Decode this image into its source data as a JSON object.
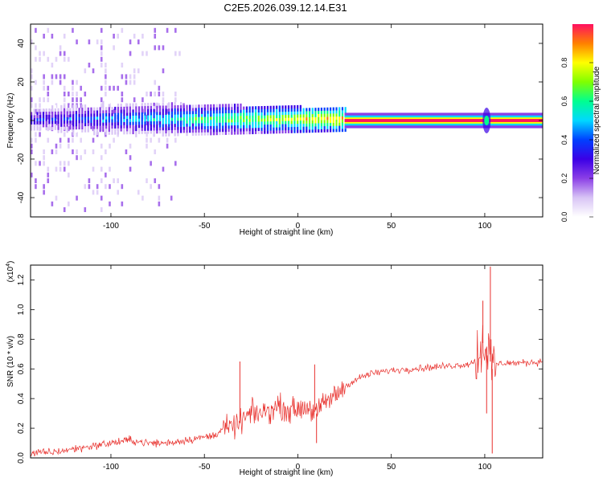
{
  "title": "C2E5.2026.039.12.14.E31",
  "colors": {
    "snr_line": "#e8302c",
    "axes": "#000000",
    "background": "#ffffff",
    "colormap": [
      "#ffffff",
      "#d8c4f5",
      "#8b3fe6",
      "#3b00e6",
      "#0040ff",
      "#00d8ff",
      "#00ff90",
      "#80ff00",
      "#ffff00",
      "#ff8000",
      "#ff1060"
    ]
  },
  "chart_data": [
    {
      "type": "heatmap",
      "title": "C2E5.2026.039.12.14.E31",
      "xlabel": "Height of straight line (km)",
      "ylabel": "Frequency (Hz)",
      "xlim": [
        -143,
        131
      ],
      "ylim": [
        -50,
        50
      ],
      "xticks": [
        -100,
        -50,
        0,
        50,
        100
      ],
      "xtick_labels": [
        "-100",
        "-50",
        "0",
        "50",
        "100"
      ],
      "yticks": [
        -40,
        -20,
        0,
        20,
        40
      ],
      "ytick_labels": [
        "-40",
        "-20",
        "0",
        "20",
        "40"
      ],
      "colorbar": {
        "label": "Normalized spectral amplitude",
        "range": [
          0,
          1
        ],
        "ticks": [
          0.0,
          0.2,
          0.4,
          0.6,
          0.8
        ],
        "tick_labels": [
          "0.0",
          "0.2",
          "0.4",
          "0.6",
          "0.8"
        ]
      },
      "description_values": {
        "central_frequency_hz": 0,
        "band_halfwidth_noise_region_hz": 6,
        "narrow_band_start_km": 25,
        "burst_location_km": 101
      }
    },
    {
      "type": "line",
      "xlabel": "Height of straight line (km)",
      "ylabel": "SNR (10 * v/v)",
      "y_exponent_label": "(x10",
      "y_exponent_power": "4",
      "y_exponent_close": ")",
      "xlim": [
        -143,
        131
      ],
      "ylim": [
        0,
        1.3
      ],
      "xticks": [
        -100,
        -50,
        0,
        50,
        100
      ],
      "xtick_labels": [
        "-100",
        "-50",
        "0",
        "50",
        "100"
      ],
      "yticks": [
        0.0,
        0.2,
        0.4,
        0.6,
        0.8,
        1.0,
        1.2
      ],
      "ytick_labels": [
        "0.0",
        "0.2",
        "0.4",
        "0.6",
        "0.8",
        "1.0",
        "1.2"
      ],
      "series": [
        {
          "name": "SNR",
          "x": [
            -143,
            -130,
            -120,
            -110,
            -100,
            -90,
            -80,
            -70,
            -60,
            -50,
            -45,
            -40,
            -35,
            -30,
            -25,
            -20,
            -15,
            -10,
            -5,
            0,
            5,
            10,
            15,
            20,
            25,
            30,
            35,
            40,
            50,
            60,
            70,
            80,
            90,
            95,
            98,
            100,
            102,
            104,
            106,
            110,
            120,
            131
          ],
          "values": [
            0.03,
            0.04,
            0.06,
            0.08,
            0.1,
            0.12,
            0.1,
            0.1,
            0.12,
            0.14,
            0.15,
            0.2,
            0.2,
            0.25,
            0.3,
            0.3,
            0.32,
            0.35,
            0.32,
            0.33,
            0.35,
            0.3,
            0.38,
            0.42,
            0.48,
            0.52,
            0.55,
            0.57,
            0.59,
            0.6,
            0.61,
            0.62,
            0.63,
            0.65,
            0.75,
            0.8,
            0.7,
            0.6,
            0.63,
            0.64,
            0.64,
            0.65
          ]
        }
      ],
      "spikes": [
        {
          "x": -31,
          "value": 0.65
        },
        {
          "x": 9,
          "value": 0.63
        },
        {
          "x": 10,
          "value": 0.1
        },
        {
          "x": 99,
          "value": 1.06
        },
        {
          "x": 101,
          "value": 0.3
        },
        {
          "x": 103,
          "value": 1.29
        },
        {
          "x": 104,
          "value": 0.03
        }
      ]
    }
  ]
}
